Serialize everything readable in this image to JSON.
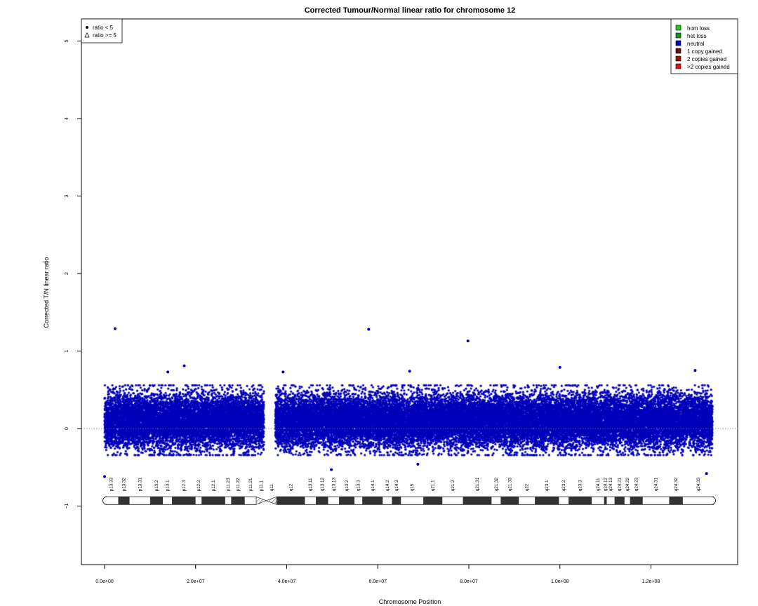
{
  "chart_data": {
    "type": "scatter",
    "title": "Corrected Tumour/Normal linear ratio for chromosome  12",
    "xlabel": "Chromosome Position",
    "ylabel": "Corrected T/N linear ratio",
    "xlim": [
      -2500000,
      139000000
    ],
    "ylim": [
      -1.8,
      5.3
    ],
    "x_ticks": [
      0,
      20000000,
      40000000,
      60000000,
      80000000,
      100000000,
      120000000
    ],
    "x_tick_labels": [
      "0.0e+00",
      "2.0e+07",
      "4.0e+07",
      "6.0e+07",
      "8.0e+07",
      "1.0e+08",
      "1.2e+08"
    ],
    "y_ticks": [
      -1,
      0,
      1,
      2,
      3,
      4,
      5
    ],
    "y_tick_labels": [
      "−1",
      "0",
      "1",
      "2",
      "3",
      "4",
      "5"
    ],
    "reference_line_y": 0,
    "shape_legend": {
      "position": "top-left",
      "entries": [
        {
          "symbol": "filled-circle",
          "label": "ratio < 5"
        },
        {
          "symbol": "open-triangle",
          "label": "ratio >= 5"
        }
      ]
    },
    "color_legend": {
      "position": "top-right",
      "entries": [
        {
          "label": "hom loss",
          "color": "#22cc22"
        },
        {
          "label": "het loss",
          "color": "#119911"
        },
        {
          "label": "neutral",
          "color": "#0000bb"
        },
        {
          "label": "1 copy gained",
          "color": "#661111"
        },
        {
          "label": "2 copies gained",
          "color": "#991111"
        },
        {
          "label": ">2 copies gained",
          "color": "#dd1111"
        }
      ]
    },
    "series": [
      {
        "name": "neutral",
        "color": "#0000bb",
        "segments": [
          {
            "x_start": 0,
            "x_end": 35000000,
            "mean": 0.1,
            "sd": 0.17
          },
          {
            "x_start": 37500000,
            "x_end": 133500000,
            "mean": 0.1,
            "sd": 0.17
          }
        ],
        "outliers": [
          {
            "x": 2300000,
            "y": 1.29
          },
          {
            "x": 58000000,
            "y": 1.28
          },
          {
            "x": 79800000,
            "y": 1.13
          },
          {
            "x": 17500000,
            "y": 0.81
          },
          {
            "x": 100000000,
            "y": 0.79
          },
          {
            "x": 13900000,
            "y": 0.73
          },
          {
            "x": 39200000,
            "y": 0.73
          },
          {
            "x": 67000000,
            "y": 0.74
          },
          {
            "x": 129700000,
            "y": 0.75
          },
          {
            "x": 0,
            "y": -0.62
          },
          {
            "x": 49800000,
            "y": -0.53
          },
          {
            "x": 68800000,
            "y": -0.46
          },
          {
            "x": 132200000,
            "y": -0.58
          }
        ]
      }
    ],
    "ideogram": {
      "y": -0.93,
      "centromere_x": 35500000,
      "bands": [
        {
          "label": "p13.33",
          "start": 0,
          "end": 3000000,
          "stain": "white"
        },
        {
          "label": "p13.32",
          "start": 3000000,
          "end": 5500000,
          "stain": "dark"
        },
        {
          "label": "p13.31",
          "start": 5500000,
          "end": 10000000,
          "stain": "white"
        },
        {
          "label": "p13.2",
          "start": 10000000,
          "end": 12800000,
          "stain": "dark"
        },
        {
          "label": "p13.1",
          "start": 12800000,
          "end": 14800000,
          "stain": "white"
        },
        {
          "label": "p12.3",
          "start": 14800000,
          "end": 20000000,
          "stain": "dark"
        },
        {
          "label": "p12.2",
          "start": 20000000,
          "end": 21300000,
          "stain": "white"
        },
        {
          "label": "p12.1",
          "start": 21300000,
          "end": 26500000,
          "stain": "dark"
        },
        {
          "label": "p11.23",
          "start": 26500000,
          "end": 27800000,
          "stain": "white"
        },
        {
          "label": "p11.22",
          "start": 27800000,
          "end": 30800000,
          "stain": "dark"
        },
        {
          "label": "p11.21",
          "start": 30800000,
          "end": 33300000,
          "stain": "white"
        },
        {
          "label": "p11.1",
          "start": 33300000,
          "end": 35500000,
          "stain": "centromere"
        },
        {
          "label": "q11",
          "start": 35500000,
          "end": 37800000,
          "stain": "centromere"
        },
        {
          "label": "q12",
          "start": 37800000,
          "end": 44000000,
          "stain": "dark"
        },
        {
          "label": "q13.11",
          "start": 44000000,
          "end": 46400000,
          "stain": "white"
        },
        {
          "label": "q13.12",
          "start": 46400000,
          "end": 49100000,
          "stain": "dark"
        },
        {
          "label": "q13.13",
          "start": 49100000,
          "end": 51500000,
          "stain": "white"
        },
        {
          "label": "q13.2",
          "start": 51500000,
          "end": 54900000,
          "stain": "dark"
        },
        {
          "label": "q13.3",
          "start": 54900000,
          "end": 56600000,
          "stain": "white"
        },
        {
          "label": "q14.1",
          "start": 56600000,
          "end": 61100000,
          "stain": "dark"
        },
        {
          "label": "q14.2",
          "start": 61100000,
          "end": 63100000,
          "stain": "white"
        },
        {
          "label": "q14.3",
          "start": 63100000,
          "end": 65100000,
          "stain": "dark"
        },
        {
          "label": "q15",
          "start": 65100000,
          "end": 70000000,
          "stain": "white"
        },
        {
          "label": "q21.1",
          "start": 70000000,
          "end": 74200000,
          "stain": "dark"
        },
        {
          "label": "q21.2",
          "start": 74200000,
          "end": 78700000,
          "stain": "white"
        },
        {
          "label": "q21.31",
          "start": 78700000,
          "end": 85000000,
          "stain": "dark"
        },
        {
          "label": "q21.32",
          "start": 85000000,
          "end": 87000000,
          "stain": "white"
        },
        {
          "label": "q21.33",
          "start": 87000000,
          "end": 91000000,
          "stain": "dark"
        },
        {
          "label": "q22",
          "start": 91000000,
          "end": 94500000,
          "stain": "white"
        },
        {
          "label": "q23.1",
          "start": 94500000,
          "end": 99800000,
          "stain": "dark"
        },
        {
          "label": "q23.2",
          "start": 99800000,
          "end": 101900000,
          "stain": "white"
        },
        {
          "label": "q23.3",
          "start": 101900000,
          "end": 107000000,
          "stain": "dark"
        },
        {
          "label": "q24.11",
          "start": 107000000,
          "end": 109700000,
          "stain": "white"
        },
        {
          "label": "q24.12",
          "start": 109700000,
          "end": 110300000,
          "stain": "dark"
        },
        {
          "label": "q24.13",
          "start": 110300000,
          "end": 112000000,
          "stain": "white"
        },
        {
          "label": "q24.21",
          "start": 112000000,
          "end": 114200000,
          "stain": "dark"
        },
        {
          "label": "q24.22",
          "start": 114200000,
          "end": 115400000,
          "stain": "white"
        },
        {
          "label": "q24.23",
          "start": 115400000,
          "end": 118200000,
          "stain": "dark"
        },
        {
          "label": "q24.31",
          "start": 118200000,
          "end": 124000000,
          "stain": "white"
        },
        {
          "label": "q24.32",
          "start": 124000000,
          "end": 127000000,
          "stain": "dark"
        },
        {
          "label": "q24.33",
          "start": 127000000,
          "end": 133800000,
          "stain": "white"
        }
      ]
    }
  }
}
